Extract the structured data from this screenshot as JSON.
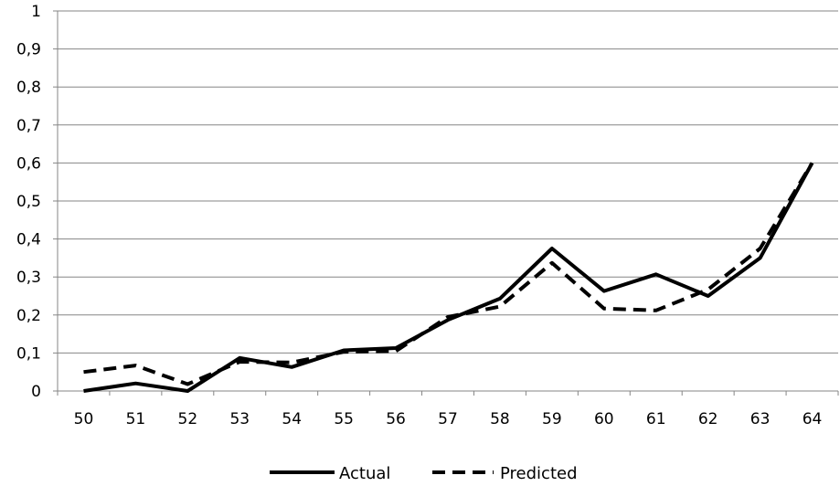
{
  "chart_data": {
    "type": "line",
    "x": [
      "50",
      "51",
      "52",
      "53",
      "54",
      "55",
      "56",
      "57",
      "58",
      "59",
      "60",
      "61",
      "62",
      "63",
      "64"
    ],
    "y_ticks": [
      "0",
      "0,1",
      "0,2",
      "0,3",
      "0,4",
      "0,5",
      "0,6",
      "0,7",
      "0,8",
      "0,9",
      "1"
    ],
    "ylim": [
      0,
      1
    ],
    "grid": "horizontal",
    "legend": "bottom",
    "series": [
      {
        "name": "Actual",
        "style": "solid",
        "color": "#000000",
        "values": [
          0.0,
          0.02,
          0.0,
          0.087,
          0.063,
          0.107,
          0.113,
          0.187,
          0.243,
          0.375,
          0.263,
          0.307,
          0.25,
          0.35,
          0.6
        ]
      },
      {
        "name": "Predicted",
        "style": "dashed",
        "color": "#000000",
        "values": [
          0.05,
          0.067,
          0.018,
          0.077,
          0.075,
          0.103,
          0.105,
          0.195,
          0.222,
          0.337,
          0.217,
          0.212,
          0.267,
          0.375,
          0.6
        ]
      }
    ],
    "title": "",
    "xlabel": "",
    "ylabel": ""
  }
}
